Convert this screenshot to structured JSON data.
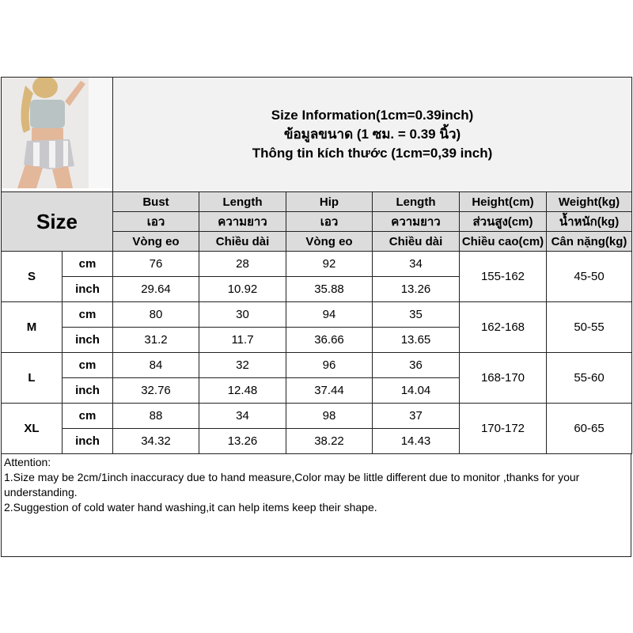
{
  "title_lines": [
    "Size Information(1cm=0.39inch)",
    "ข้อมูลขนาด (1 ซม. = 0.39 นิ้ว)",
    "Thông tin kích thước (1cm=0,39 inch)"
  ],
  "size_label": "Size",
  "headers": [
    [
      "Bust",
      "Length",
      "Hip",
      "Length",
      "Height(cm)",
      "Weight(kg)"
    ],
    [
      "เอว",
      "ความยาว",
      "เอว",
      "ความยาว",
      "ส่วนสูง(cm)",
      "น้ำหนัก(kg)"
    ],
    [
      "Vòng eo",
      "Chiều dài",
      "Vòng eo",
      "Chiều dài",
      "Chiều cao(cm)",
      "Cân nặng(kg)"
    ]
  ],
  "units": {
    "cm": "cm",
    "inch": "inch"
  },
  "rows": [
    {
      "size": "S",
      "cm": [
        "76",
        "28",
        "92",
        "34"
      ],
      "inch": [
        "29.64",
        "10.92",
        "35.88",
        "13.26"
      ],
      "height": "155-162",
      "weight": "45-50"
    },
    {
      "size": "M",
      "cm": [
        "80",
        "30",
        "94",
        "35"
      ],
      "inch": [
        "31.2",
        "11.7",
        "36.66",
        "13.65"
      ],
      "height": "162-168",
      "weight": "50-55"
    },
    {
      "size": "L",
      "cm": [
        "84",
        "32",
        "96",
        "36"
      ],
      "inch": [
        "32.76",
        "12.48",
        "37.44",
        "14.04"
      ],
      "height": "168-170",
      "weight": "55-60"
    },
    {
      "size": "XL",
      "cm": [
        "88",
        "34",
        "98",
        "37"
      ],
      "inch": [
        "34.32",
        "13.26",
        "38.22",
        "14.43"
      ],
      "height": "170-172",
      "weight": "60-65"
    }
  ],
  "attention": [
    "Attention:",
    "1.Size may be 2cm/1inch inaccuracy due to hand measure,Color may be little different due to monitor ,thanks for your understanding.",
    "2.Suggestion of cold water hand washing,it can help items keep their shape."
  ]
}
